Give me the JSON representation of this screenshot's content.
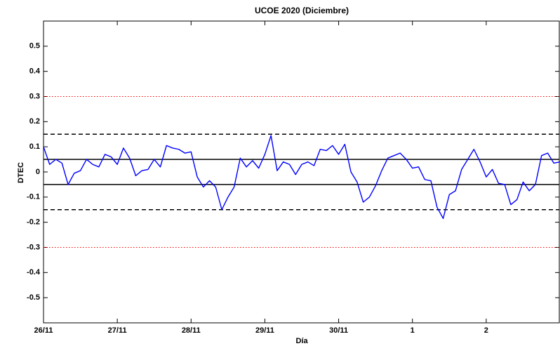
{
  "chart_data": {
    "type": "line",
    "title": "UCOE 2020 (Diciembre)",
    "xlabel": "Día",
    "ylabel": "DTEC",
    "x": [
      0,
      2,
      4,
      6,
      8,
      10,
      12,
      14,
      16,
      18,
      20,
      22,
      24,
      26,
      28,
      30,
      32,
      34,
      36,
      38,
      40,
      42,
      44,
      46,
      48,
      50,
      52,
      54,
      56,
      58,
      60,
      62,
      64,
      66,
      68,
      70,
      72,
      74,
      76,
      78,
      80,
      82,
      84,
      86,
      88,
      90,
      92,
      94,
      96,
      98,
      100,
      102,
      104,
      106,
      108,
      110,
      112,
      114,
      116,
      118,
      120,
      122,
      124,
      126,
      128,
      130,
      132,
      134,
      136,
      138,
      140,
      142,
      144,
      146,
      148,
      150,
      152,
      154,
      156,
      158,
      160,
      162,
      164,
      166,
      168
    ],
    "series": [
      {
        "name": "DTEC",
        "color": "#0000ff",
        "values": [
          0.1,
          0.03,
          0.05,
          0.035,
          -0.05,
          -0.005,
          0.005,
          0.05,
          0.03,
          0.02,
          0.07,
          0.06,
          0.03,
          0.095,
          0.055,
          -0.015,
          0.005,
          0.01,
          0.05,
          0.02,
          0.105,
          0.095,
          0.09,
          0.075,
          0.08,
          -0.02,
          -0.06,
          -0.035,
          -0.06,
          -0.15,
          -0.1,
          -0.06,
          0.055,
          0.02,
          0.045,
          0.015,
          0.07,
          0.145,
          0.005,
          0.04,
          0.03,
          -0.01,
          0.03,
          0.04,
          0.025,
          0.09,
          0.085,
          0.105,
          0.07,
          0.11,
          0.0,
          -0.04,
          -0.12,
          -0.1,
          -0.055,
          0.005,
          0.055,
          0.065,
          0.075,
          0.05,
          0.015,
          0.02,
          -0.03,
          -0.035,
          -0.14,
          -0.185,
          -0.09,
          -0.075,
          0.01,
          0.05,
          0.09,
          0.04,
          -0.02,
          0.01,
          -0.045,
          -0.05,
          -0.13,
          -0.11,
          -0.04,
          -0.075,
          -0.05,
          0.065,
          0.075,
          0.035,
          0.04
        ]
      }
    ],
    "reference_lines": [
      {
        "value": 0.05,
        "color": "#000000",
        "style": "solid"
      },
      {
        "value": -0.05,
        "color": "#000000",
        "style": "solid"
      },
      {
        "value": 0.15,
        "color": "#000000",
        "style": "dashed"
      },
      {
        "value": -0.15,
        "color": "#000000",
        "style": "dashed"
      },
      {
        "value": 0.3,
        "color": "#ff0000",
        "style": "dotted"
      },
      {
        "value": -0.3,
        "color": "#ff0000",
        "style": "dotted"
      }
    ],
    "xlim": [
      0,
      168
    ],
    "xticks": [
      {
        "value": 0,
        "label": "26/11"
      },
      {
        "value": 24,
        "label": "27/11"
      },
      {
        "value": 48,
        "label": "28/11"
      },
      {
        "value": 72,
        "label": "29/11"
      },
      {
        "value": 96,
        "label": "30/11"
      },
      {
        "value": 120,
        "label": "1"
      },
      {
        "value": 144,
        "label": "2"
      }
    ],
    "ylim": [
      -0.6,
      0.6
    ],
    "yticks": [
      -0.5,
      -0.4,
      -0.3,
      -0.2,
      -0.1,
      0,
      0.1,
      0.2,
      0.3,
      0.4,
      0.5
    ],
    "grid": false
  }
}
